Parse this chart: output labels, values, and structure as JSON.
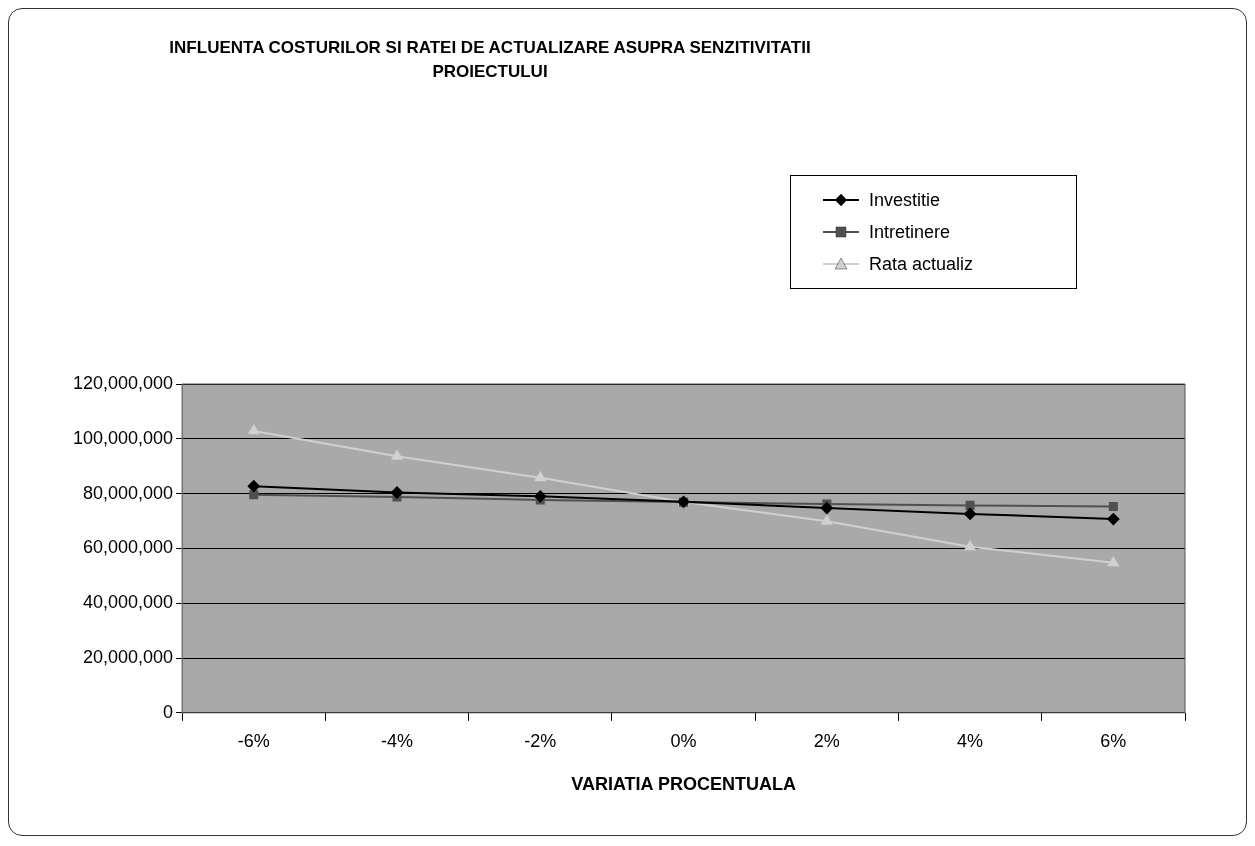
{
  "chart_data": {
    "type": "line",
    "title": "INFLUENTA COSTURILOR SI RATEI DE ACTUALIZARE ASUPRA SENZITIVITATII PROIECTULUI",
    "xlabel": "VARIATIA PROCENTUALA",
    "categories": [
      "-6%",
      "-4%",
      "-2%",
      "0%",
      "2%",
      "4%",
      "6%"
    ],
    "series": [
      {
        "name": "Investitie",
        "color": "#000000",
        "marker": "diamond",
        "values": [
          82700000,
          80400000,
          79000000,
          77000000,
          74700000,
          72600000,
          70700000
        ]
      },
      {
        "name": "Intretinere",
        "color": "#505050",
        "marker": "square",
        "values": [
          79600000,
          78800000,
          77700000,
          76900000,
          76200000,
          75700000,
          75300000
        ]
      },
      {
        "name": "Rata actualiz",
        "color": "#d0d0d0",
        "marker": "triangle",
        "values": [
          102900000,
          93600000,
          85800000,
          76900000,
          69900000,
          60600000,
          54800000
        ]
      }
    ],
    "ylim": [
      0,
      120000000
    ],
    "yticks": [
      {
        "value": 0,
        "label": "0"
      },
      {
        "value": 20000000,
        "label": "20,000,000"
      },
      {
        "value": 40000000,
        "label": "40,000,000"
      },
      {
        "value": 60000000,
        "label": "60,000,000"
      },
      {
        "value": 80000000,
        "label": "80,000,000"
      },
      {
        "value": 100000000,
        "label": "100,000,000"
      },
      {
        "value": 120000000,
        "label": "120,000,000"
      }
    ],
    "grid": "y",
    "legend": "top right"
  }
}
